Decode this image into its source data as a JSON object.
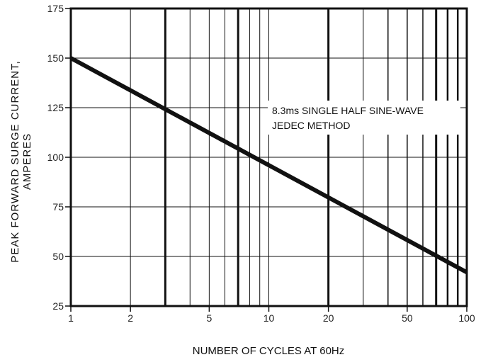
{
  "chart_data": {
    "type": "line",
    "xscale": "log",
    "xlim": [
      1,
      100
    ],
    "ylim": [
      25,
      175
    ],
    "x_ticks": [
      1,
      2,
      5,
      10,
      20,
      50,
      100
    ],
    "x_tick_labels": [
      "1",
      "2",
      "5",
      "10",
      "20",
      "50",
      "100"
    ],
    "y_ticks": [
      25,
      50,
      75,
      100,
      125,
      150,
      175
    ],
    "y_tick_labels": [
      "25",
      "50",
      "75",
      "100",
      "125",
      "150",
      "175"
    ],
    "xlabel": "NUMBER OF CYCLES AT 60Hz",
    "ylabel_line1": "PEAK FORWARD SURGE CURRENT,",
    "ylabel_line2": "AMPERES",
    "grid": true,
    "series": [
      {
        "x": [
          1,
          100
        ],
        "y": [
          150,
          42
        ]
      }
    ],
    "annotation_line1": "8.3ms SINGLE HALF SINE-WAVE",
    "annotation_line2": "JEDEC METHOD",
    "annotation_position": "upper-right"
  }
}
